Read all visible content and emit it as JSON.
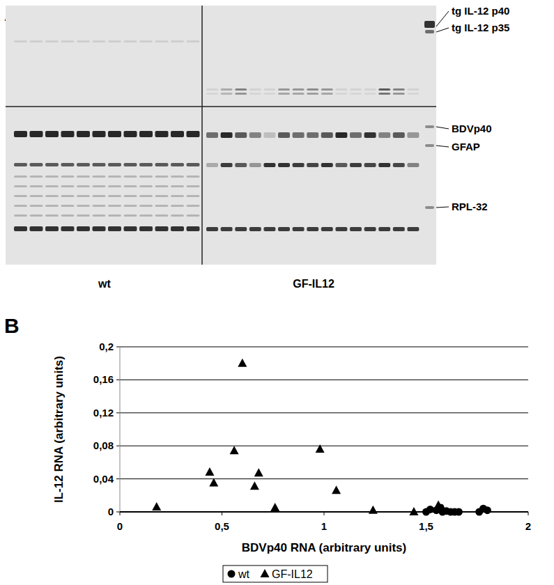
{
  "panel_a": {
    "label": "A",
    "bands": [
      "tg IL-12 p40",
      "tg IL-12 p35",
      "BDVp40",
      "GFAP",
      "RPL-32"
    ],
    "groups": [
      "wt",
      "GF-IL12"
    ]
  },
  "panel_b": {
    "label": "B"
  },
  "chart_data": {
    "type": "scatter",
    "x_label": "BDVp40 RNA (arbitrary units)",
    "y_label": "IL-12 RNA (arbitrary units)",
    "xlim": [
      0,
      2
    ],
    "ylim": [
      0,
      0.2
    ],
    "xticks": [
      0,
      {
        "value": 0.5,
        "label": "0,5"
      },
      1,
      {
        "value": 1.5,
        "label": "1,5"
      },
      2
    ],
    "yticks": [
      0,
      {
        "value": 0.04,
        "label": "0,04"
      },
      {
        "value": 0.08,
        "label": "0,08"
      },
      {
        "value": 0.12,
        "label": "0,12"
      },
      {
        "value": 0.16,
        "label": "0,16"
      },
      {
        "value": 0.2,
        "label": "0,2"
      }
    ],
    "grid": true,
    "legend": "bottom",
    "series": [
      {
        "name": "wt",
        "color": "#000000",
        "marker": "circle",
        "x": [
          1.5,
          1.52,
          1.55,
          1.57,
          1.58,
          1.6,
          1.62,
          1.64,
          1.66,
          1.76,
          1.78,
          1.8
        ],
        "values": [
          0,
          0.003,
          0.002,
          0.005,
          0,
          0.001,
          0,
          0,
          0,
          0,
          0.004,
          0.002
        ]
      },
      {
        "name": "GF-IL12",
        "color": "#000000",
        "marker": "triangle",
        "x": [
          0.18,
          0.44,
          0.46,
          0.56,
          0.6,
          0.66,
          0.68,
          0.76,
          0.98,
          1.06,
          1.24,
          1.44,
          1.56,
          1.58
        ],
        "values": [
          0.006,
          0.048,
          0.035,
          0.074,
          0.18,
          0.031,
          0.047,
          0.005,
          0.076,
          0.026,
          0.002,
          0,
          0.008,
          0.004
        ]
      }
    ]
  }
}
